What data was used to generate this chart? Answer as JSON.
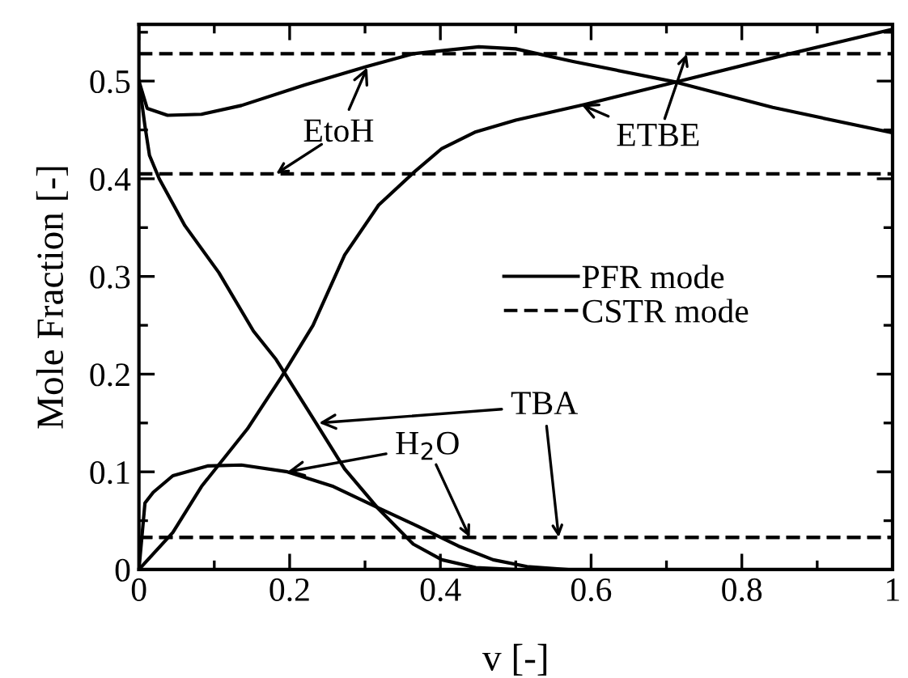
{
  "chart_data": {
    "type": "line",
    "xlabel": "v [-]",
    "ylabel": "Mole Fraction [-]",
    "xlim": [
      0,
      1
    ],
    "ylim": [
      0,
      0.558
    ],
    "xticks": [
      0,
      0.2,
      0.4,
      0.6,
      0.8,
      1
    ],
    "yticks": [
      0,
      0.1,
      0.2,
      0.3,
      0.4,
      0.5
    ],
    "grid": false,
    "legend": "right",
    "marker": "none",
    "series": [
      {
        "name": "PFR mode",
        "color": "#000000",
        "line_style": "solid",
        "x": [
          0,
          0.011,
          0.038,
          0.083,
          0.136,
          0.22,
          0.303,
          0.364,
          0.451,
          0.5,
          0.576,
          0.712,
          0.841,
          1
        ],
        "values": [
          0.5,
          0.472,
          0.465,
          0.466,
          0.475,
          0.496,
          0.515,
          0.528,
          0.535,
          0.533,
          0.52,
          0.499,
          0.473,
          0.447
        ]
      },
      {
        "color": "#000000",
        "line_style": "solid",
        "x": [
          0,
          0.045,
          0.083,
          0.144,
          0.189,
          0.231,
          0.273,
          0.318,
          0.364,
          0.402,
          0.447,
          0.5,
          0.591,
          0.712,
          0.864,
          1
        ],
        "values": [
          0,
          0.038,
          0.085,
          0.144,
          0.197,
          0.25,
          0.322,
          0.373,
          0.406,
          0.431,
          0.448,
          0.46,
          0.476,
          0.499,
          0.528,
          0.553
        ]
      },
      {
        "color": "#000000",
        "line_style": "solid",
        "x": [
          0,
          0.008,
          0.014,
          0.027,
          0.061,
          0.106,
          0.152,
          0.182,
          0.235,
          0.273,
          0.318,
          0.364,
          0.402,
          0.447,
          0.5
        ],
        "values": [
          0.5,
          0.454,
          0.424,
          0.4,
          0.352,
          0.304,
          0.244,
          0.215,
          0.15,
          0.103,
          0.062,
          0.026,
          0.01,
          0.002,
          0
        ]
      },
      {
        "color": "#000000",
        "line_style": "solid",
        "x": [
          0,
          0.008,
          0.019,
          0.045,
          0.091,
          0.136,
          0.197,
          0.258,
          0.318,
          0.371,
          0.424,
          0.47,
          0.515,
          0.568
        ],
        "values": [
          0,
          0.068,
          0.079,
          0.096,
          0.106,
          0.107,
          0.1,
          0.085,
          0.063,
          0.044,
          0.024,
          0.01,
          0.003,
          0
        ]
      },
      {
        "name": "CSTR mode",
        "color": "#000000",
        "line_style": "dashed",
        "x": [
          0,
          1
        ],
        "values": [
          0.405,
          0.405
        ]
      },
      {
        "color": "#000000",
        "line_style": "dashed",
        "x": [
          0,
          1
        ],
        "values": [
          0.528,
          0.528
        ]
      },
      {
        "color": "#000000",
        "line_style": "dashed",
        "x": [
          0,
          1
        ],
        "values": [
          0.033,
          0.033
        ]
      },
      {
        "color": "#000000",
        "line_style": "dashed",
        "x": [
          0,
          1
        ],
        "values": [
          0.033,
          0.033
        ]
      }
    ],
    "annotations": [
      {
        "text": "EtoH",
        "x": 0.303,
        "y": 0.514
      },
      {
        "text": "ETBE",
        "x": 0.587,
        "y": 0.476
      },
      {
        "text": "TBA",
        "x": 0.239,
        "y": 0.15
      },
      {
        "text": "H$_{2}$O",
        "x": 0.197,
        "y": 0.1
      }
    ]
  }
}
